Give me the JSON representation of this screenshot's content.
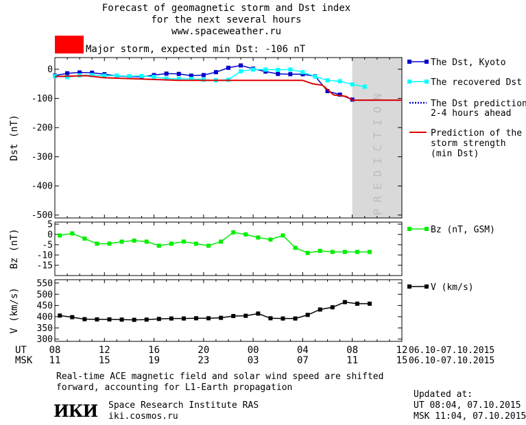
{
  "header": {
    "title_lines": [
      "Forecast of geomagnetic storm and Dst index",
      "for the next several hours",
      "www.spaceweather.ru"
    ],
    "storm_label": "Major storm, expected min Dst: -106 nT",
    "storm_color": "#ff0000"
  },
  "colors": {
    "dst_kyoto": "#0000cc",
    "dst_recovered": "#00ffff",
    "dst_prediction": "#0000cc",
    "storm_strength": "#dd0000",
    "bz": "#00ee00",
    "v": "#000000",
    "prediction_zone": "#d9d9d9"
  },
  "chart_data": [
    {
      "type": "line",
      "panel": "dst",
      "ylabel": "Dst (nT)",
      "ylim": [
        -510,
        40
      ],
      "yticks": [
        0,
        -100,
        -200,
        -300,
        -400,
        -500
      ],
      "ytick_labels": [
        "0",
        "-100",
        "-200",
        "-300",
        "-400",
        "-500"
      ],
      "prediction_label": "PREDICTION",
      "prediction_x_range": [
        32,
        36
      ],
      "series": [
        {
          "name": "The Dst, Kyoto",
          "key": "dst_kyoto",
          "x": [
            8,
            9,
            10,
            11,
            12,
            13,
            14,
            15,
            16,
            17,
            18,
            19,
            20,
            21,
            22,
            23,
            24,
            25,
            26,
            27,
            28,
            29,
            30,
            31,
            32
          ],
          "y": [
            -22,
            -14,
            -11,
            -12,
            -17,
            -23,
            -25,
            -26,
            -20,
            -15,
            -16,
            -22,
            -20,
            -10,
            5,
            13,
            2,
            -8,
            -16,
            -17,
            -17,
            -24,
            -75,
            -87,
            -104
          ]
        },
        {
          "name": "The recovered Dst",
          "key": "dst_recovered",
          "x": [
            8,
            9,
            10,
            11,
            12,
            13,
            14,
            15,
            16,
            17,
            18,
            19,
            20,
            21,
            22,
            23,
            24,
            25,
            26,
            27,
            28,
            29,
            30,
            31,
            32,
            33
          ],
          "y": [
            -24,
            -27,
            -21,
            -20,
            -22,
            -22,
            -24,
            -23,
            -26,
            -32,
            -33,
            -33,
            -36,
            -38,
            -36,
            -7,
            -1,
            -1,
            -2,
            -1,
            -10,
            -25,
            -38,
            -41,
            -52,
            -60
          ]
        },
        {
          "name": "The Dst prediction 2-4 hours ahead",
          "key": "dst_prediction",
          "dotted": true,
          "x": [
            32,
            36
          ],
          "y": [
            -106,
            -106
          ]
        },
        {
          "name": "Prediction of the storm strength (min Dst)",
          "key": "storm_strength",
          "x": [
            8,
            10.5,
            12,
            18,
            28,
            28.8,
            29.6,
            30.5,
            31.5,
            32,
            36
          ],
          "y": [
            -25,
            -22,
            -29,
            -38,
            -38,
            -50,
            -55,
            -88,
            -93,
            -106,
            -106
          ]
        }
      ]
    },
    {
      "type": "line",
      "panel": "bz",
      "ylabel": "Bz (nT)",
      "ylim": [
        -20,
        6
      ],
      "yticks": [
        5,
        0,
        -5,
        -10,
        -15
      ],
      "ytick_labels": [
        "5",
        "0",
        "-5",
        "-10",
        "-15"
      ],
      "series": [
        {
          "name": "Bz (nT, GSM)",
          "key": "bz",
          "x": [
            8.4,
            9.4,
            10.4,
            11.4,
            12.4,
            13.4,
            14.4,
            15.4,
            16.4,
            17.4,
            18.4,
            19.4,
            20.4,
            21.4,
            22.4,
            23.4,
            24.4,
            25.4,
            26.4,
            27.4,
            28.4,
            29.4,
            30.4,
            31.4,
            32.4,
            33.4
          ],
          "y": [
            -0.5,
            0.5,
            -2,
            -4.5,
            -4.5,
            -3.5,
            -3,
            -3.5,
            -5.5,
            -4.5,
            -3.5,
            -4.5,
            -5.5,
            -3.5,
            1,
            0,
            -1.5,
            -2.5,
            -0.5,
            -6.5,
            -9,
            -8,
            -8.5,
            -8.5,
            -8.5,
            -8.5
          ]
        }
      ]
    },
    {
      "type": "line",
      "panel": "v",
      "ylabel": "V (km/s)",
      "ylim": [
        290,
        565
      ],
      "yticks": [
        550,
        500,
        450,
        400,
        350,
        300
      ],
      "ytick_labels": [
        "550",
        "500",
        "450",
        "400",
        "350",
        "300"
      ],
      "series": [
        {
          "name": "V (km/s)",
          "key": "v",
          "x": [
            8.4,
            9.4,
            10.4,
            11.4,
            12.4,
            13.4,
            14.4,
            15.4,
            16.4,
            17.4,
            18.4,
            19.4,
            20.4,
            21.4,
            22.4,
            23.4,
            24.4,
            25.4,
            26.4,
            27.4,
            28.4,
            29.4,
            30.4,
            31.4,
            32.4,
            33.4
          ],
          "y": [
            405,
            398,
            389,
            388,
            388,
            387,
            386,
            387,
            390,
            392,
            392,
            393,
            393,
            395,
            403,
            404,
            414,
            393,
            392,
            392,
            408,
            432,
            442,
            465,
            458,
            458
          ]
        }
      ]
    }
  ],
  "xaxis": {
    "ut_label": "UT",
    "msk_label": "MSK",
    "x_ticks": [
      8,
      12,
      16,
      20,
      24,
      28,
      32,
      36
    ],
    "ut_tick_labels": [
      "08",
      "12",
      "16",
      "20",
      "00",
      "04",
      "08",
      "12"
    ],
    "msk_tick_labels": [
      "11",
      "15",
      "19",
      "23",
      "03",
      "07",
      "11",
      "15"
    ],
    "date_range": "06.10-07.10.2015"
  },
  "legend": {
    "dst_kyoto": "The Dst, Kyoto",
    "dst_recovered": "The recovered Dst",
    "dst_prediction_1": "The Dst prediction",
    "dst_prediction_2": "2-4 hours ahead",
    "storm_strength_1": "Prediction of the",
    "storm_strength_2": "storm strength",
    "storm_strength_3": "(min Dst)",
    "bz": "Bz (nT, GSM)",
    "v": "V (km/s)"
  },
  "footer": {
    "note_line1": "Real-time ACE magnetic field and solar wind speed are shifted",
    "note_line2": "forward, accounting for L1-Earth propagation",
    "logo_text": "ИКИ",
    "institute": "Space Research Institute RAS",
    "website": "iki.cosmos.ru",
    "updated_label": "Updated at:",
    "updated_ut": "UT   08:04, 07.10.2015",
    "updated_msk": "MSK 11:04, 07.10.2015"
  }
}
